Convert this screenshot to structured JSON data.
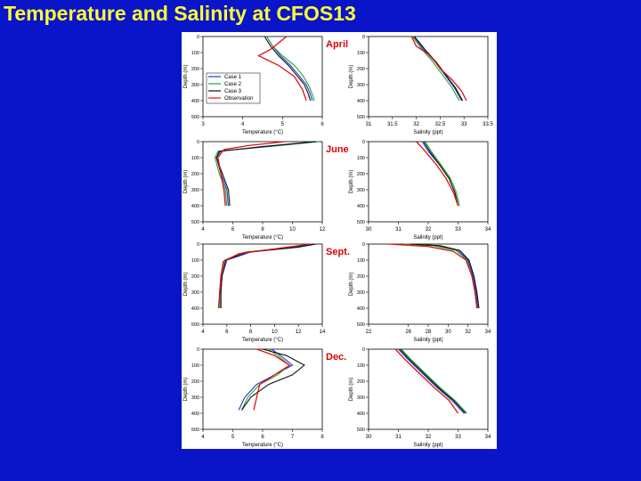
{
  "title": "Temperature and Salinity at CFOS13",
  "colors": {
    "background": "#0a14c8",
    "title": "#ffff33",
    "month_label": "#dd0000",
    "Case 1": "#2233dd",
    "Case 2": "#22aa22",
    "Case 3": "#111111",
    "Observation": "#dd1111"
  },
  "legend": [
    "Case 1",
    "Case 2",
    "Case 3",
    "Observation"
  ],
  "chart_data": [
    {
      "month": "April",
      "variable": "temperature",
      "type": "line",
      "xlabel": "Temperature (°C)",
      "ylabel": "Depth (m)",
      "xlim": [
        3,
        6
      ],
      "ylim": [
        0,
        500
      ],
      "xticks": [
        3,
        4,
        5,
        6
      ],
      "yticks": [
        0,
        100,
        200,
        300,
        400,
        500
      ],
      "legend": [
        "Case 1",
        "Case 2",
        "Case 3",
        "Observation"
      ],
      "series": [
        {
          "name": "Case 1",
          "x": [
            4.6,
            4.75,
            4.95,
            5.2,
            5.4,
            5.6,
            5.7,
            5.75
          ],
          "y": [
            0,
            60,
            120,
            180,
            240,
            300,
            360,
            400
          ]
        },
        {
          "name": "Case 2",
          "x": [
            4.6,
            4.75,
            5.0,
            5.3,
            5.5,
            5.65,
            5.75,
            5.8
          ],
          "y": [
            0,
            60,
            120,
            180,
            240,
            300,
            360,
            400
          ]
        },
        {
          "name": "Case 3",
          "x": [
            4.55,
            4.7,
            4.9,
            5.15,
            5.35,
            5.55,
            5.65,
            5.7
          ],
          "y": [
            0,
            60,
            120,
            180,
            240,
            300,
            360,
            400
          ]
        },
        {
          "name": "Observation",
          "x": [
            5.1,
            4.9,
            4.7,
            4.4,
            4.9,
            5.3,
            5.5,
            5.6
          ],
          "y": [
            0,
            40,
            80,
            120,
            180,
            250,
            330,
            400
          ]
        }
      ]
    },
    {
      "month": "April",
      "variable": "salinity",
      "type": "line",
      "xlabel": "Salinity (ppt)",
      "ylabel": "Depth (m)",
      "xlim": [
        31,
        33.5
      ],
      "ylim": [
        0,
        500
      ],
      "xticks": [
        31,
        31.5,
        32,
        32.5,
        33,
        33.5
      ],
      "yticks": [
        0,
        100,
        200,
        300,
        400,
        500
      ],
      "series": [
        {
          "name": "Case 1",
          "x": [
            31.95,
            32.15,
            32.4,
            32.6,
            32.8,
            32.95
          ],
          "y": [
            0,
            80,
            160,
            240,
            320,
            400
          ]
        },
        {
          "name": "Case 2",
          "x": [
            31.92,
            32.12,
            32.35,
            32.55,
            32.75,
            32.9
          ],
          "y": [
            0,
            80,
            160,
            240,
            320,
            400
          ]
        },
        {
          "name": "Case 3",
          "x": [
            31.96,
            32.18,
            32.42,
            32.62,
            32.82,
            32.97
          ],
          "y": [
            0,
            80,
            160,
            240,
            320,
            400
          ]
        },
        {
          "name": "Observation",
          "x": [
            31.9,
            32.0,
            32.3,
            32.5,
            32.75,
            32.95,
            33.05
          ],
          "y": [
            0,
            60,
            120,
            200,
            270,
            340,
            400
          ]
        }
      ]
    },
    {
      "month": "June",
      "variable": "temperature",
      "type": "line",
      "xlabel": "Temperature (°C)",
      "ylabel": "Depth (m)",
      "xlim": [
        4,
        12
      ],
      "ylim": [
        0,
        500
      ],
      "xticks": [
        4,
        6,
        8,
        10,
        12
      ],
      "yticks": [
        0,
        100,
        200,
        300,
        400,
        500
      ],
      "series": [
        {
          "name": "Case 1",
          "x": [
            11.5,
            8,
            5.2,
            4.9,
            5.2,
            5.6,
            5.7
          ],
          "y": [
            0,
            30,
            60,
            100,
            200,
            300,
            400
          ]
        },
        {
          "name": "Case 2",
          "x": [
            11.8,
            8.5,
            5.0,
            4.8,
            5.1,
            5.5,
            5.6
          ],
          "y": [
            0,
            30,
            60,
            100,
            200,
            300,
            400
          ]
        },
        {
          "name": "Case 3",
          "x": [
            11.6,
            8.2,
            5.1,
            4.9,
            5.3,
            5.7,
            5.8
          ],
          "y": [
            0,
            30,
            60,
            100,
            200,
            300,
            400
          ]
        },
        {
          "name": "Observation",
          "x": [
            9.5,
            7,
            5.4,
            5.0,
            5.2,
            5.4,
            5.5
          ],
          "y": [
            0,
            25,
            50,
            100,
            200,
            300,
            400
          ]
        }
      ]
    },
    {
      "month": "June",
      "variable": "salinity",
      "type": "line",
      "xlabel": "Salinity (ppt)",
      "ylabel": "Depth (m)",
      "xlim": [
        30,
        34
      ],
      "ylim": [
        0,
        500
      ],
      "xticks": [
        30,
        31,
        32,
        33,
        34
      ],
      "yticks": [
        0,
        100,
        200,
        300,
        400,
        500
      ],
      "series": [
        {
          "name": "Case 1",
          "x": [
            31.8,
            32.0,
            32.4,
            32.7,
            32.9,
            33.0
          ],
          "y": [
            0,
            60,
            150,
            230,
            320,
            400
          ]
        },
        {
          "name": "Case 2",
          "x": [
            31.9,
            32.1,
            32.45,
            32.75,
            32.95,
            33.05
          ],
          "y": [
            0,
            60,
            150,
            230,
            320,
            400
          ]
        },
        {
          "name": "Case 3",
          "x": [
            31.85,
            32.05,
            32.4,
            32.7,
            32.9,
            33.0
          ],
          "y": [
            0,
            60,
            150,
            230,
            320,
            400
          ]
        },
        {
          "name": "Observation",
          "x": [
            31.6,
            31.9,
            32.3,
            32.6,
            32.85,
            33.0
          ],
          "y": [
            0,
            60,
            150,
            230,
            320,
            400
          ]
        }
      ]
    },
    {
      "month": "Sept.",
      "variable": "temperature",
      "type": "line",
      "xlabel": "Temperature (°C)",
      "ylabel": "Depth (m)",
      "xlim": [
        4,
        14
      ],
      "ylim": [
        0,
        500
      ],
      "xticks": [
        4,
        6,
        8,
        10,
        12,
        14
      ],
      "yticks": [
        0,
        100,
        200,
        300,
        400,
        500
      ],
      "series": [
        {
          "name": "Case 1",
          "x": [
            13.5,
            12,
            8,
            6,
            5.6,
            5.5,
            5.5
          ],
          "y": [
            0,
            20,
            50,
            100,
            200,
            300,
            400
          ]
        },
        {
          "name": "Case 2",
          "x": [
            13.2,
            11.5,
            7.5,
            5.8,
            5.5,
            5.4,
            5.4
          ],
          "y": [
            0,
            20,
            50,
            100,
            200,
            300,
            400
          ]
        },
        {
          "name": "Case 3",
          "x": [
            13.4,
            11.8,
            7.8,
            5.9,
            5.6,
            5.5,
            5.5
          ],
          "y": [
            0,
            20,
            50,
            100,
            200,
            300,
            400
          ]
        },
        {
          "name": "Observation",
          "x": [
            13.0,
            10.5,
            7.0,
            5.7,
            5.5,
            5.4,
            5.3
          ],
          "y": [
            0,
            25,
            60,
            110,
            200,
            300,
            400
          ]
        }
      ]
    },
    {
      "month": "Sept.",
      "variable": "salinity",
      "type": "line",
      "xlabel": "Salinity (ppt)",
      "ylabel": "Depth (m)",
      "xlim": [
        22,
        34
      ],
      "ylim": [
        0,
        500
      ],
      "xticks": [
        22,
        26,
        28,
        30,
        32,
        34
      ],
      "yticks": [
        0,
        100,
        200,
        300,
        400,
        500
      ],
      "series": [
        {
          "name": "Case 1",
          "x": [
            26,
            29,
            31,
            32,
            32.5,
            32.8,
            33.0
          ],
          "y": [
            0,
            10,
            40,
            100,
            200,
            300,
            400
          ]
        },
        {
          "name": "Case 2",
          "x": [
            25.5,
            28.5,
            30.8,
            31.9,
            32.4,
            32.7,
            32.9
          ],
          "y": [
            0,
            10,
            40,
            100,
            200,
            300,
            400
          ]
        },
        {
          "name": "Case 3",
          "x": [
            26.2,
            29.2,
            31.2,
            32.1,
            32.6,
            32.9,
            33.1
          ],
          "y": [
            0,
            10,
            40,
            100,
            200,
            300,
            400
          ]
        },
        {
          "name": "Observation",
          "x": [
            24,
            28,
            30.5,
            31.8,
            32.4,
            32.7,
            32.9
          ],
          "y": [
            0,
            15,
            45,
            100,
            200,
            300,
            400
          ]
        }
      ]
    },
    {
      "month": "Dec.",
      "variable": "temperature",
      "type": "line",
      "xlabel": "Temperature (°C)",
      "ylabel": "Depth (m)",
      "xlim": [
        4,
        8
      ],
      "ylim": [
        0,
        500
      ],
      "xticks": [
        4,
        5,
        6,
        7,
        8
      ],
      "yticks": [
        0,
        100,
        200,
        300,
        400,
        500
      ],
      "series": [
        {
          "name": "Case 1",
          "x": [
            6.3,
            6.6,
            7.0,
            6.4,
            5.8,
            5.4,
            5.2
          ],
          "y": [
            0,
            40,
            100,
            160,
            220,
            300,
            380
          ]
        },
        {
          "name": "Case 2",
          "x": [
            6.2,
            6.5,
            6.9,
            6.5,
            5.9,
            5.5,
            5.3
          ],
          "y": [
            0,
            40,
            100,
            160,
            220,
            300,
            380
          ]
        },
        {
          "name": "Case 3",
          "x": [
            6.0,
            6.8,
            7.4,
            7.0,
            6.2,
            5.6,
            5.3
          ],
          "y": [
            0,
            40,
            100,
            160,
            220,
            300,
            380
          ]
        },
        {
          "name": "Observation",
          "x": [
            5.8,
            6.4,
            6.9,
            6.4,
            5.9,
            5.8,
            5.7
          ],
          "y": [
            0,
            40,
            100,
            160,
            220,
            300,
            380
          ]
        }
      ]
    },
    {
      "month": "Dec.",
      "variable": "salinity",
      "type": "line",
      "xlabel": "Salinity (ppt)",
      "ylabel": "Depth (m)",
      "xlim": [
        30,
        34
      ],
      "ylim": [
        0,
        500
      ],
      "xticks": [
        30,
        31,
        32,
        33,
        34
      ],
      "yticks": [
        0,
        100,
        200,
        300,
        400,
        500
      ],
      "series": [
        {
          "name": "Case 1",
          "x": [
            31.0,
            31.3,
            31.8,
            32.3,
            32.8,
            33.2
          ],
          "y": [
            0,
            60,
            150,
            240,
            320,
            400
          ]
        },
        {
          "name": "Case 2",
          "x": [
            31.1,
            31.4,
            31.9,
            32.4,
            32.9,
            33.3
          ],
          "y": [
            0,
            60,
            150,
            240,
            320,
            400
          ]
        },
        {
          "name": "Case 3",
          "x": [
            31.05,
            31.35,
            31.85,
            32.35,
            32.85,
            33.25
          ],
          "y": [
            0,
            60,
            150,
            240,
            320,
            400
          ]
        },
        {
          "name": "Observation",
          "x": [
            30.9,
            31.2,
            31.7,
            32.2,
            32.7,
            33.0
          ],
          "y": [
            0,
            60,
            150,
            240,
            320,
            400
          ]
        }
      ]
    }
  ]
}
